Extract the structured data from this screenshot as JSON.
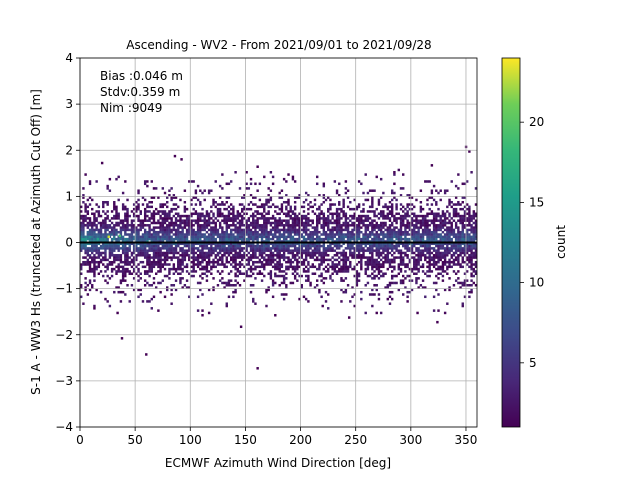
{
  "chart_data": {
    "type": "heatmap",
    "title": "Ascending - WV2 - From 2021/09/01 to 2021/09/28",
    "xlabel": "ECMWF Azimuth Wind Direction [deg]",
    "ylabel": "S-1 A - WW3 Hs (truncated at Azimuth Cut Off) [m]",
    "xlim": [
      0,
      360
    ],
    "ylim": [
      -4,
      4
    ],
    "xticks": [
      0,
      50,
      100,
      150,
      200,
      250,
      300,
      350
    ],
    "yticks": [
      -4,
      -3,
      -2,
      -1,
      0,
      1,
      2,
      3,
      4
    ],
    "grid": true,
    "colormap": "viridis",
    "colorbar": {
      "label": "count",
      "range": [
        1,
        24
      ],
      "ticks": [
        5,
        10,
        15,
        20
      ]
    },
    "annotations": [
      "Bias :0.046 m",
      "Stdv:0.359 m",
      "Nim :9049"
    ],
    "reference_line": {
      "y": 0,
      "color": "#000000"
    },
    "bin_width_x": 2,
    "bin_height_y": 0.05,
    "core_band": {
      "y_min": -0.55,
      "y_max": 0.65,
      "peak_y": 0.05
    },
    "hotspots": [
      {
        "x": 25,
        "y": 0.1,
        "count": 23
      },
      {
        "x": 35,
        "y": 0.12,
        "count": 19
      },
      {
        "x": 15,
        "y": 0.05,
        "count": 16
      },
      {
        "x": 60,
        "y": 0.0,
        "count": 13
      }
    ],
    "outliers": [
      {
        "x": 19,
        "y": 1.7
      },
      {
        "x": 85,
        "y": 1.85
      },
      {
        "x": 91,
        "y": 1.78
      },
      {
        "x": 160,
        "y": 1.62
      },
      {
        "x": 318,
        "y": 1.65
      },
      {
        "x": 349,
        "y": 2.05
      },
      {
        "x": 352,
        "y": 1.95
      },
      {
        "x": 37,
        "y": -2.1
      },
      {
        "x": 59,
        "y": -2.45
      },
      {
        "x": 160,
        "y": -2.75
      },
      {
        "x": 110,
        "y": -1.6
      },
      {
        "x": 219,
        "y": -1.4
      },
      {
        "x": 268,
        "y": -1.55
      },
      {
        "x": 323,
        "y": -1.75
      },
      {
        "x": 12,
        "y": -1.45
      },
      {
        "x": 33,
        "y": -1.55
      },
      {
        "x": 145,
        "y": -1.85
      },
      {
        "x": 243,
        "y": -1.65
      },
      {
        "x": 305,
        "y": -1.55
      }
    ]
  }
}
